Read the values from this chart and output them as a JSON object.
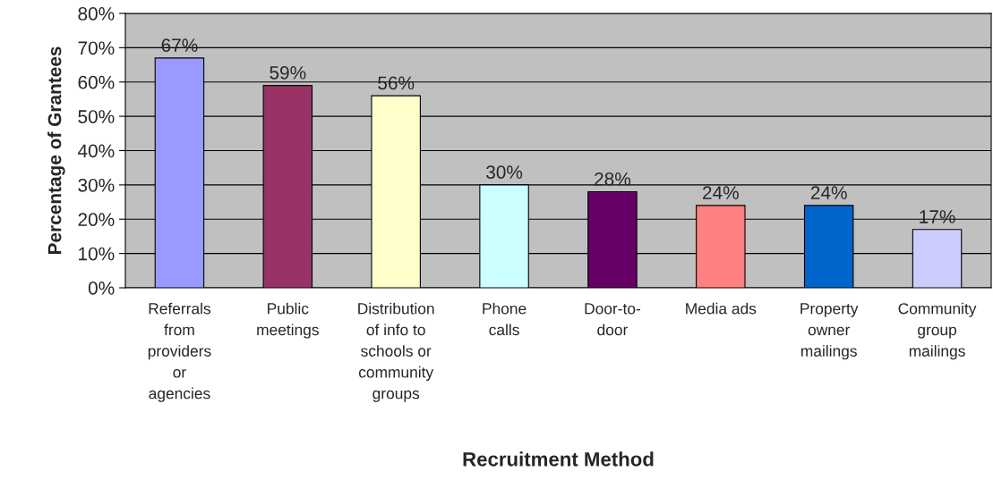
{
  "chart_data": {
    "type": "bar",
    "categories": [
      "Referrals\nfrom\nproviders\nor\nagencies",
      "Public\nmeetings",
      "Distribution\nof info to\nschools or\ncommunity\ngroups",
      "Phone\ncalls",
      "Door-to-\ndoor",
      "Media ads",
      "Property\nowner\nmailings",
      "Community\ngroup\nmailings"
    ],
    "values": [
      67,
      59,
      56,
      30,
      28,
      24,
      24,
      17
    ],
    "colors": [
      "#9999ff",
      "#993366",
      "#ffffcc",
      "#ccffff",
      "#660066",
      "#ff8080",
      "#0066cc",
      "#ccccff"
    ],
    "value_labels": [
      "67%",
      "59%",
      "56%",
      "30%",
      "28%",
      "24%",
      "24%",
      "17%"
    ],
    "xlabel": "Recruitment Method",
    "ylabel": "Percentage of Grantees",
    "ylim": [
      0,
      80
    ],
    "yticks": [
      {
        "value": 0,
        "label": "0%"
      },
      {
        "value": 10,
        "label": "10%"
      },
      {
        "value": 20,
        "label": "20%"
      },
      {
        "value": 30,
        "label": "30%"
      },
      {
        "value": 40,
        "label": "40%"
      },
      {
        "value": 50,
        "label": "50%"
      },
      {
        "value": 60,
        "label": "60%"
      },
      {
        "value": 70,
        "label": "70%"
      },
      {
        "value": 80,
        "label": "80%"
      }
    ],
    "grid": "y",
    "legend": false
  }
}
